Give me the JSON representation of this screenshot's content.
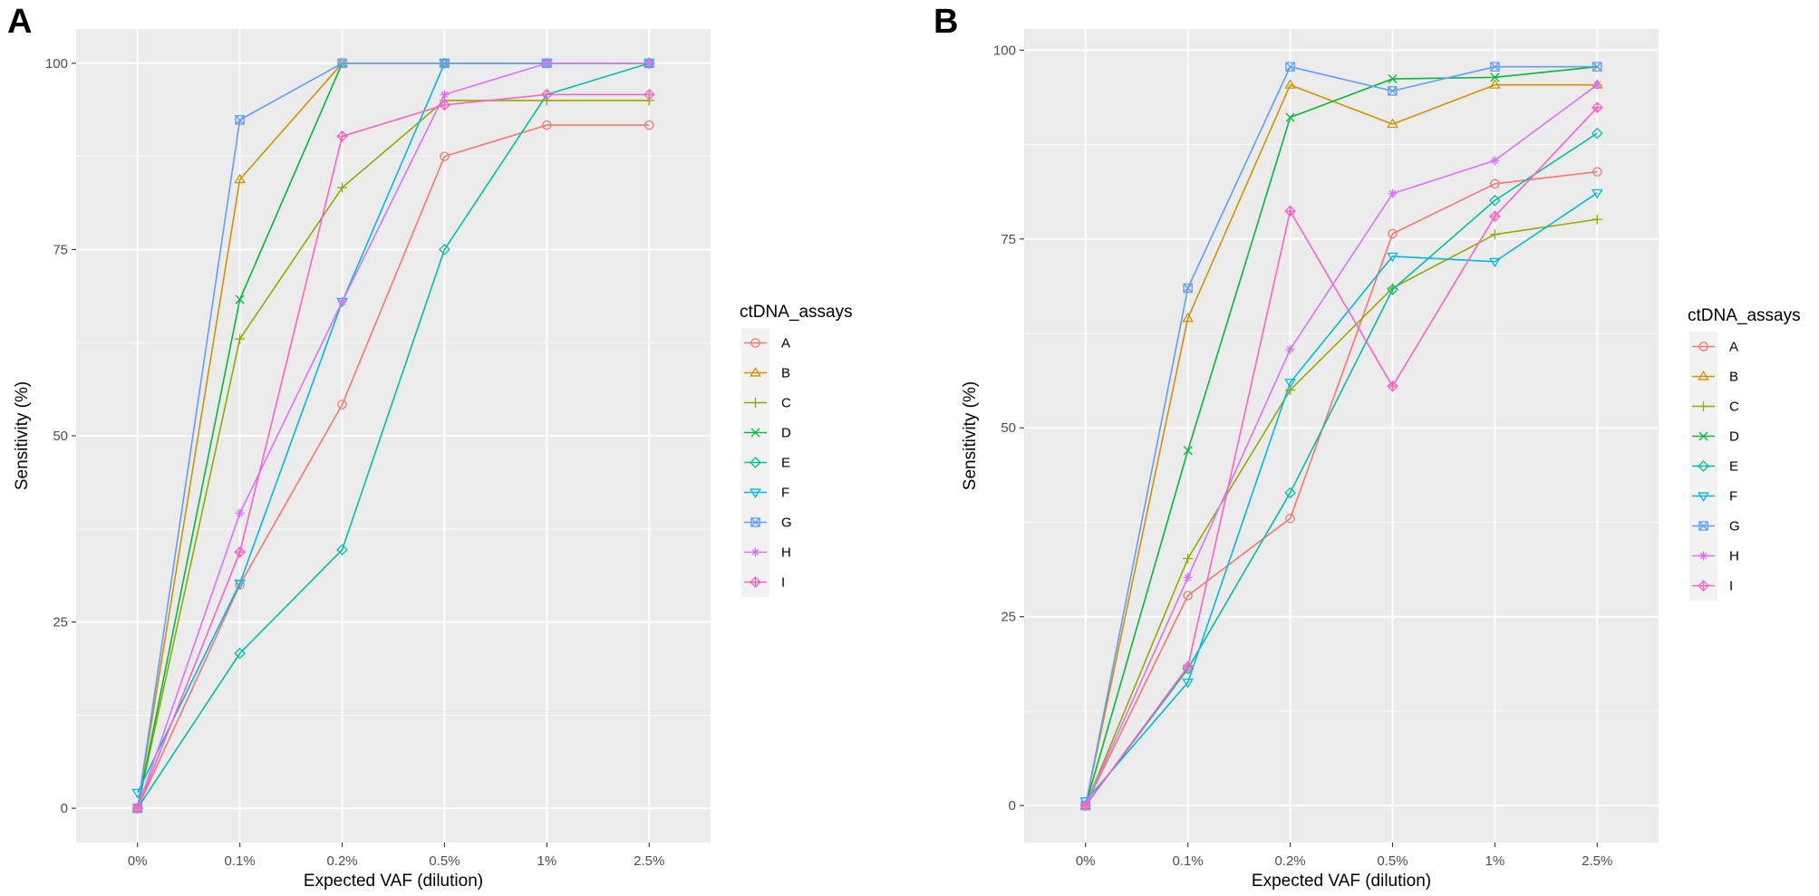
{
  "chart_data": [
    {
      "panel": "A",
      "type": "line",
      "xlabel": "Expected VAF (dilution)",
      "ylabel": "Sensitivity (%)",
      "categories": [
        "0%",
        "0.1%",
        "0.2%",
        "0.5%",
        "1%",
        "2.5%"
      ],
      "ylim": [
        -4.6,
        104.6
      ],
      "yticks": [
        0,
        25,
        50,
        75,
        100
      ],
      "legend_title": "ctDNA_assays",
      "legend_position": "right",
      "series": [
        {
          "name": "A",
          "values": [
            0,
            30,
            54.2,
            87.5,
            91.7,
            91.7
          ]
        },
        {
          "name": "B",
          "values": [
            0,
            84.4,
            100,
            100,
            100,
            100
          ]
        },
        {
          "name": "C",
          "values": [
            0,
            63,
            83.3,
            95,
            95,
            95
          ]
        },
        {
          "name": "D",
          "values": [
            0,
            68.3,
            100,
            100,
            100,
            100
          ]
        },
        {
          "name": "E",
          "values": [
            0,
            20.8,
            34.7,
            75,
            95.8,
            100
          ]
        },
        {
          "name": "F",
          "values": [
            2.1,
            30.2,
            68,
            100,
            100,
            100
          ]
        },
        {
          "name": "G",
          "values": [
            0,
            92.4,
            100,
            100,
            100,
            100
          ]
        },
        {
          "name": "H",
          "values": [
            0,
            39.6,
            68,
            95.8,
            100,
            100
          ]
        },
        {
          "name": "I",
          "values": [
            0,
            34.4,
            90.2,
            94.4,
            95.8,
            95.8
          ]
        }
      ]
    },
    {
      "panel": "B",
      "type": "line",
      "xlabel": "Expected VAF (dilution)",
      "ylabel": "Sensitivity (%)",
      "categories": [
        "0%",
        "0.1%",
        "0.2%",
        "0.5%",
        "1%",
        "2.5%"
      ],
      "ylim": [
        -4.9,
        102.8
      ],
      "yticks": [
        0,
        25,
        50,
        75,
        100
      ],
      "legend_title": "ctDNA_assays",
      "legend_position": "right",
      "series": [
        {
          "name": "A",
          "values": [
            0,
            27.8,
            38,
            75.7,
            82.3,
            83.9
          ]
        },
        {
          "name": "B",
          "values": [
            0,
            64.5,
            95.4,
            90.2,
            95.4,
            95.4
          ]
        },
        {
          "name": "C",
          "values": [
            0,
            32.7,
            55,
            68.5,
            75.6,
            77.6
          ]
        },
        {
          "name": "D",
          "values": [
            0,
            47,
            91.1,
            96.2,
            96.4,
            97.8
          ]
        },
        {
          "name": "E",
          "values": [
            0,
            18.1,
            41.4,
            68.3,
            80.1,
            89
          ]
        },
        {
          "name": "F",
          "values": [
            0.6,
            16.3,
            56,
            72.7,
            72,
            81.1
          ]
        },
        {
          "name": "G",
          "values": [
            0,
            68.5,
            97.8,
            94.6,
            97.8,
            97.8
          ]
        },
        {
          "name": "H",
          "values": [
            0,
            30.2,
            60.4,
            81,
            85.4,
            95.4
          ]
        },
        {
          "name": "I",
          "values": [
            0,
            18.4,
            78.7,
            55.5,
            78,
            92.4
          ]
        }
      ]
    }
  ],
  "series_style": {
    "A": {
      "color": "#F8766D",
      "shape": "circle"
    },
    "B": {
      "color": "#D39200",
      "shape": "triangle-up"
    },
    "C": {
      "color": "#93AA00",
      "shape": "plus"
    },
    "D": {
      "color": "#00BA38",
      "shape": "cross"
    },
    "E": {
      "color": "#00C19F",
      "shape": "diamond"
    },
    "F": {
      "color": "#00B9E3",
      "shape": "triangle-down"
    },
    "G": {
      "color": "#619CFF",
      "shape": "square-cross"
    },
    "H": {
      "color": "#DB72FB",
      "shape": "asterisk"
    },
    "I": {
      "color": "#FF61C3",
      "shape": "diamond-plus"
    }
  },
  "panel_bg_color": "#EBEBEB",
  "grid_color": "#FFFFFF"
}
